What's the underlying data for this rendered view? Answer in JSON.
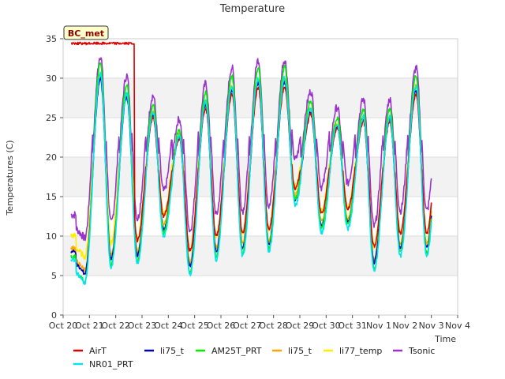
{
  "chart_data": {
    "type": "line",
    "title": "Temperature",
    "xlabel": "Time",
    "ylabel": "Temperatures (C)",
    "badge": "BC_met",
    "xlim": [
      0,
      15
    ],
    "ylim": [
      0,
      35
    ],
    "x_ticks": [
      {
        "value": 0,
        "label": "Oct 20"
      },
      {
        "value": 1,
        "label": "Oct 21"
      },
      {
        "value": 2,
        "label": "Oct 22"
      },
      {
        "value": 3,
        "label": "Oct 23"
      },
      {
        "value": 4,
        "label": "Oct 24"
      },
      {
        "value": 5,
        "label": "Oct 25"
      },
      {
        "value": 6,
        "label": "Oct 26"
      },
      {
        "value": 7,
        "label": "Oct 27"
      },
      {
        "value": 8,
        "label": "Oct 28"
      },
      {
        "value": 9,
        "label": "Oct 29"
      },
      {
        "value": 10,
        "label": "Oct 30"
      },
      {
        "value": 11,
        "label": "Oct 31"
      },
      {
        "value": 12,
        "label": "Nov 1"
      },
      {
        "value": 13,
        "label": "Nov 2"
      },
      {
        "value": 14,
        "label": "Nov 3"
      },
      {
        "value": 15,
        "label": "Nov 4"
      }
    ],
    "y_ticks": [
      0,
      5,
      10,
      15,
      20,
      25,
      30,
      35
    ],
    "shaded_bands": [
      [
        5,
        10
      ],
      [
        15,
        20
      ],
      [
        25,
        30
      ]
    ],
    "legend_placement": "bottom",
    "daily": {
      "days": [
        1,
        2,
        3,
        4,
        5,
        6,
        7,
        8,
        9,
        10,
        11,
        12,
        13,
        14
      ],
      "min": [
        4.5,
        6.5,
        7.0,
        10.5,
        5.5,
        7.5,
        8.0,
        8.5,
        14.5,
        11.0,
        11.5,
        6.0,
        8.0,
        8.0
      ],
      "max": [
        31.0,
        28.5,
        26.0,
        23.0,
        27.5,
        29.5,
        30.5,
        30.5,
        26.5,
        24.5,
        25.5,
        25.5,
        29.5,
        29.5
      ]
    },
    "series": [
      {
        "name": "AirT",
        "color": "#dd0000",
        "peak": 0.86,
        "base": 1.4,
        "noise": 0.25,
        "flat": {
          "x": [
            0.3,
            2.72
          ],
          "y": 34.4
        }
      },
      {
        "name": "NR01_PRT",
        "color": "#00e5ee",
        "peak": 0.98,
        "base": -0.6,
        "noise": 0.3
      },
      {
        "name": "li75_t",
        "color": "#0000bb",
        "peak": 0.93,
        "base": 0.0,
        "noise": 0.25
      },
      {
        "name": "AM25T_PRT",
        "color": "#00ee00",
        "peak": 1.05,
        "base": 0.2,
        "noise": 0.3
      },
      {
        "name": "li75_t",
        "color": "#ffa500",
        "peak": 0.95,
        "base": 0.6,
        "noise": 0.3
      },
      {
        "name": "li77_temp",
        "color": "#ffee00",
        "peak": 0.9,
        "base": 1.8,
        "noise": 0.35
      },
      {
        "name": "Tsonic",
        "color": "#9933cc",
        "peak": 1.0,
        "base": 5.2,
        "noise": 0.5
      }
    ]
  }
}
